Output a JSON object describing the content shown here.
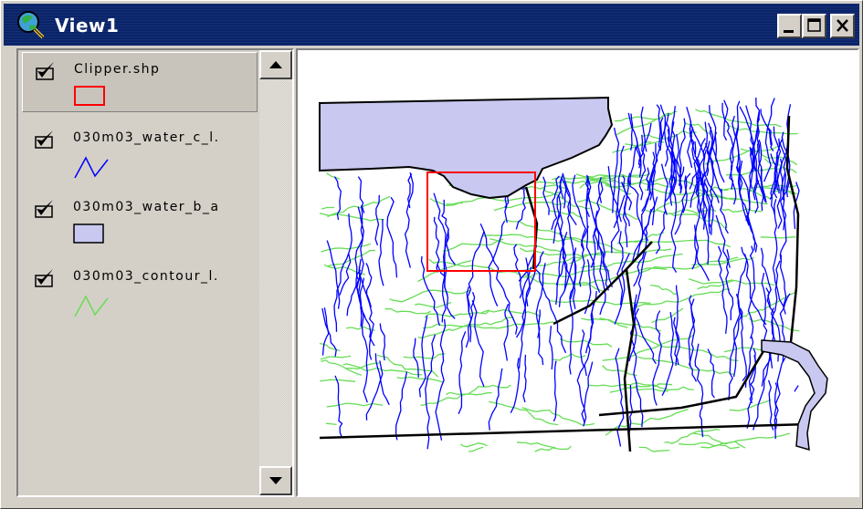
{
  "window": {
    "title": "View1",
    "minimize_label": "minimize",
    "maximize_label": "maximize",
    "close_label": "close"
  },
  "layers": [
    {
      "name": "Clipper.shp",
      "visible": true,
      "legend": "rectangle-outline",
      "color": "#ff0000"
    },
    {
      "name": "030m03_water_c_l.",
      "visible": true,
      "legend": "line",
      "color": "#0000ff"
    },
    {
      "name": "030m03_water_b_a",
      "visible": true,
      "legend": "polygon-fill",
      "color": "#c8c8f0"
    },
    {
      "name": "030m03_contour_l.",
      "visible": true,
      "legend": "line",
      "color": "#66dd55"
    }
  ],
  "colors": {
    "titlebar": "#0a246a",
    "water_lines": "#0000ff",
    "water_area": "#c8c8f0",
    "contours": "#66dd55",
    "clipper": "#ff0000"
  }
}
